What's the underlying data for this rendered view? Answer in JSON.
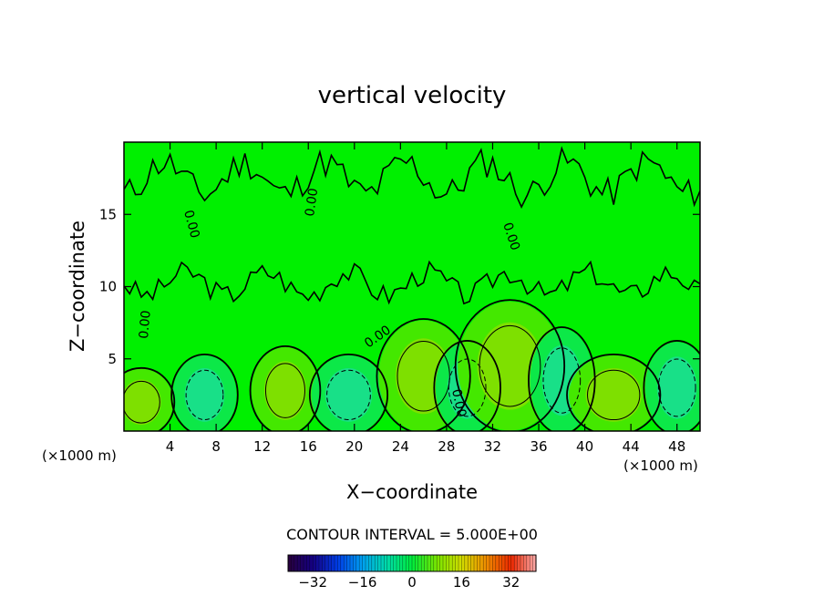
{
  "chart_data": {
    "type": "heatmap",
    "title": "vertical velocity",
    "xlabel": "X−coordinate",
    "ylabel": "Z−coordinate",
    "x_unit_label": "(×1000 m)",
    "y_unit_label": "(×1000 m)",
    "xlim": [
      0,
      50
    ],
    "ylim": [
      0,
      20
    ],
    "x_ticks": [
      4,
      8,
      12,
      16,
      20,
      24,
      28,
      32,
      36,
      40,
      44,
      48
    ],
    "y_ticks": [
      5,
      10,
      15
    ],
    "contour_interval_text": "CONTOUR INTERVAL = 5.000E+00",
    "contour_label": "0.00",
    "colorbar": {
      "range": [
        -40,
        40
      ],
      "ticks": [
        -32,
        -16,
        0,
        16,
        32
      ],
      "tick_labels": [
        "−32",
        "−16",
        "0",
        "16",
        "32"
      ]
    },
    "cells": [
      {
        "x": 1.5,
        "z": 2.0,
        "w": 8
      },
      {
        "x": 7.0,
        "z": 2.5,
        "w": -6
      },
      {
        "x": 14.0,
        "z": 2.8,
        "w": 9
      },
      {
        "x": 19.5,
        "z": 2.5,
        "w": -10
      },
      {
        "x": 26.0,
        "z": 3.8,
        "w": 12
      },
      {
        "x": 29.8,
        "z": 3.0,
        "w": -6
      },
      {
        "x": 33.5,
        "z": 4.5,
        "w": 14
      },
      {
        "x": 38.0,
        "z": 3.5,
        "w": -6
      },
      {
        "x": 42.5,
        "z": 2.5,
        "w": 12
      },
      {
        "x": 48.0,
        "z": 3.0,
        "w": -5
      }
    ],
    "colors": {
      "background": "#00f000",
      "positive_core": "#7ee000",
      "negative_core": "#18e088"
    }
  }
}
